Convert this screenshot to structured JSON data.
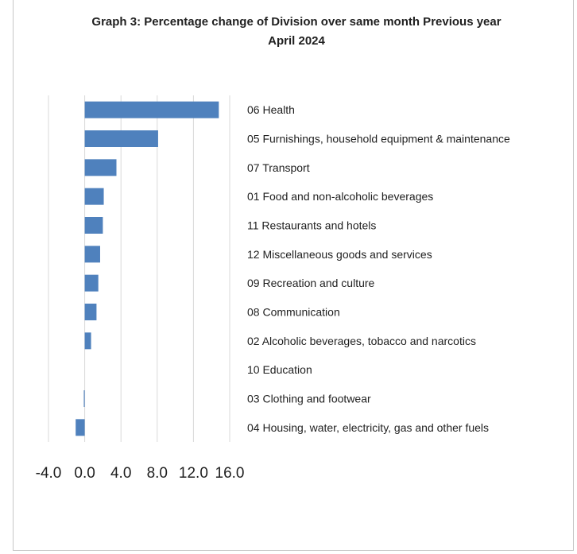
{
  "chart_data": {
    "type": "bar",
    "orientation": "horizontal",
    "title": "Graph 3: Percentage change of Division over same month  Previous year",
    "subtitle": "April 2024",
    "categories": [
      "06 Health",
      "05 Furnishings, household equipment & maintenance",
      "07 Transport",
      "01 Food and non-alcoholic beverages",
      "11 Restaurants and hotels",
      "12 Miscellaneous goods and services",
      "09 Recreation and culture",
      "08 Communication",
      "02 Alcoholic beverages, tobacco and narcotics",
      "10 Education",
      "03 Clothing and footwear",
      "04 Housing, water, electricity, gas and other fuels"
    ],
    "values": [
      14.8,
      8.1,
      3.5,
      2.1,
      2.0,
      1.7,
      1.5,
      1.3,
      0.7,
      0.0,
      -0.1,
      -1.0
    ],
    "xlim": [
      -4.0,
      16.0
    ],
    "xticks": [
      "-4.0",
      "0.0",
      "4.0",
      "8.0",
      "12.0",
      "16.0"
    ],
    "grid": true,
    "bar_color": "#4f81bd",
    "grid_color": "#d9d9d9"
  }
}
